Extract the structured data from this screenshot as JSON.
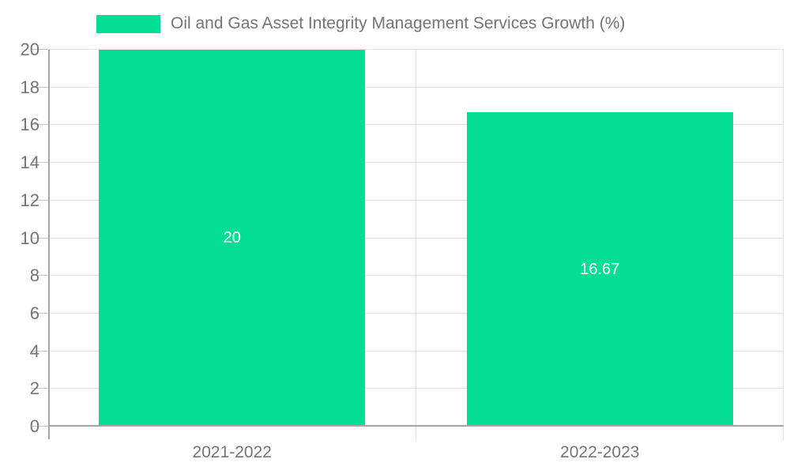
{
  "legend": {
    "label": "Oil and Gas Asset Integrity Management Services Growth (%)"
  },
  "chart_data": {
    "type": "bar",
    "title": "",
    "legend_entries": [
      "Oil and Gas Asset Integrity Management Services Growth (%)"
    ],
    "legend_position": "top",
    "categories": [
      "2021-2022",
      "2022-2023"
    ],
    "values": [
      20,
      16.67
    ],
    "bar_value_labels": [
      "20",
      "16.67"
    ],
    "xlabel": "",
    "ylabel": "",
    "ylim": [
      0,
      20
    ],
    "yticks": [
      0,
      2,
      4,
      6,
      8,
      10,
      12,
      14,
      16,
      18,
      20
    ],
    "grid": true,
    "colors": {
      "bar": "#03DE95",
      "grid": "#e3e3e3",
      "tick": "#c6c6c6",
      "axis": "#a6a6a6",
      "text": "#757575",
      "bar_label": "#ffffff",
      "background": "#ffffff"
    }
  }
}
